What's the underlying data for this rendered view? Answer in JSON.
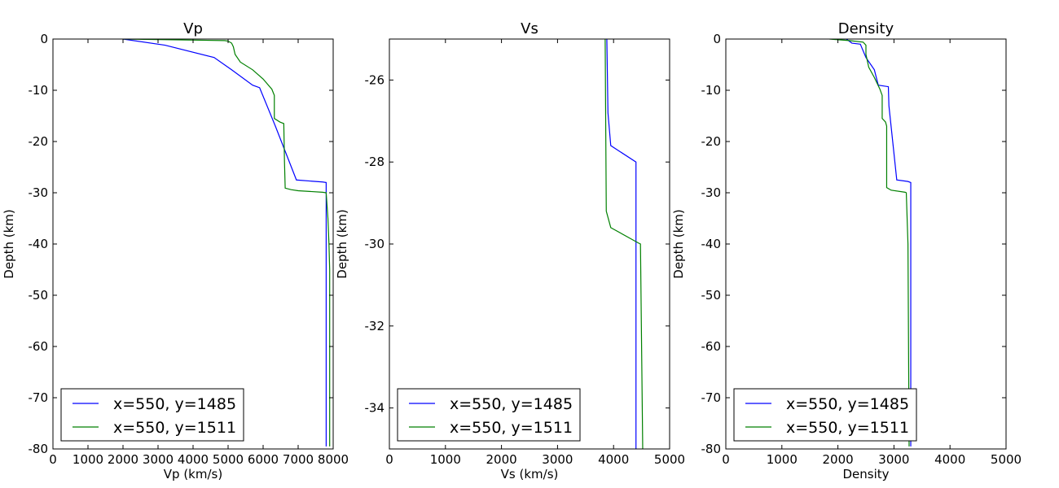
{
  "chart_data": [
    {
      "type": "line",
      "title": "Vp",
      "xlabel": "Vp (km/s)",
      "ylabel": "Depth (km)",
      "xlim": [
        0,
        8000
      ],
      "ylim": [
        -80,
        0
      ],
      "xticks": [
        0,
        1000,
        2000,
        3000,
        4000,
        5000,
        6000,
        7000,
        8000
      ],
      "yticks": [
        0,
        -10,
        -20,
        -30,
        -40,
        -50,
        -60,
        -70,
        -80
      ],
      "grid": false,
      "legend": "lower-left",
      "series": [
        {
          "name": "x=550, y=1485",
          "color": "#0000ff",
          "points": [
            [
              2000,
              0
            ],
            [
              3200,
              -1.2
            ],
            [
              4600,
              -3.6
            ],
            [
              5100,
              -6.0
            ],
            [
              5700,
              -9.0
            ],
            [
              5900,
              -9.5
            ],
            [
              6350,
              -17.0
            ],
            [
              6950,
              -27.5
            ],
            [
              7700,
              -27.9
            ],
            [
              7800,
              -28.0
            ],
            [
              7800,
              -79.5
            ]
          ]
        },
        {
          "name": "x=550, y=1511",
          "color": "#008000",
          "points": [
            [
              2000,
              0
            ],
            [
              4900,
              -0.3
            ],
            [
              5000,
              -0.4
            ],
            [
              5100,
              -0.8
            ],
            [
              5150,
              -1.5
            ],
            [
              5200,
              -3.0
            ],
            [
              5350,
              -4.5
            ],
            [
              5700,
              -6.0
            ],
            [
              6000,
              -7.8
            ],
            [
              6250,
              -9.8
            ],
            [
              6320,
              -11.0
            ],
            [
              6320,
              -15.5
            ],
            [
              6480,
              -16.2
            ],
            [
              6590,
              -16.5
            ],
            [
              6610,
              -24.0
            ],
            [
              6630,
              -29.1
            ],
            [
              6800,
              -29.4
            ],
            [
              7000,
              -29.6
            ],
            [
              7700,
              -29.9
            ],
            [
              7800,
              -30.0
            ],
            [
              7850,
              -35.0
            ],
            [
              7880,
              -40.0
            ],
            [
              7900,
              -45.0
            ],
            [
              7900,
              -79.5
            ]
          ]
        }
      ]
    },
    {
      "type": "line",
      "title": "Vs",
      "xlabel": "Vs (km/s)",
      "ylabel": "Depth (km)",
      "xlim": [
        0,
        5000
      ],
      "ylim": [
        -35,
        -25
      ],
      "xticks": [
        0,
        1000,
        2000,
        3000,
        4000,
        5000
      ],
      "yticks": [
        -26,
        -28,
        -30,
        -32,
        -34
      ],
      "grid": false,
      "legend": "lower-left",
      "series": [
        {
          "name": "x=550, y=1485",
          "color": "#0000ff",
          "points": [
            [
              3880,
              -25.0
            ],
            [
              3900,
              -26.8
            ],
            [
              3950,
              -27.6
            ],
            [
              4400,
              -28.0
            ],
            [
              4400,
              -35.0
            ]
          ]
        },
        {
          "name": "x=550, y=1511",
          "color": "#008000",
          "points": [
            [
              3850,
              -25.0
            ],
            [
              3870,
              -29.2
            ],
            [
              3950,
              -29.6
            ],
            [
              4450,
              -29.98
            ],
            [
              4480,
              -30.0
            ],
            [
              4520,
              -35.0
            ]
          ]
        }
      ]
    },
    {
      "type": "line",
      "title": "Density",
      "xlabel": "Density",
      "ylabel": "Depth (km)",
      "xlim": [
        0,
        5000
      ],
      "ylim": [
        -80,
        0
      ],
      "xticks": [
        0,
        1000,
        2000,
        3000,
        4000,
        5000
      ],
      "yticks": [
        0,
        -10,
        -20,
        -30,
        -40,
        -50,
        -60,
        -70,
        -80
      ],
      "grid": false,
      "legend": "lower-left",
      "series": [
        {
          "name": "x=550, y=1485",
          "color": "#0000ff",
          "points": [
            [
              1900,
              0
            ],
            [
              2150,
              0
            ],
            [
              2250,
              -0.8
            ],
            [
              2400,
              -1.0
            ],
            [
              2500,
              -3.6
            ],
            [
              2650,
              -6.0
            ],
            [
              2720,
              -9.0
            ],
            [
              2900,
              -9.3
            ],
            [
              2910,
              -13.0
            ],
            [
              3050,
              -27.5
            ],
            [
              3250,
              -27.8
            ],
            [
              3300,
              -28.0
            ],
            [
              3300,
              -79.5
            ]
          ]
        },
        {
          "name": "x=550, y=1511",
          "color": "#008000",
          "points": [
            [
              1850,
              0
            ],
            [
              2200,
              -0.3
            ],
            [
              2450,
              -0.6
            ],
            [
              2500,
              -1.2
            ],
            [
              2500,
              -3.0
            ],
            [
              2550,
              -5.5
            ],
            [
              2650,
              -7.5
            ],
            [
              2750,
              -9.8
            ],
            [
              2790,
              -11.0
            ],
            [
              2790,
              -15.5
            ],
            [
              2850,
              -16.2
            ],
            [
              2870,
              -17.0
            ],
            [
              2870,
              -29.0
            ],
            [
              2950,
              -29.5
            ],
            [
              3200,
              -29.9
            ],
            [
              3220,
              -30.0
            ],
            [
              3250,
              -40.0
            ],
            [
              3270,
              -79.5
            ]
          ]
        }
      ]
    }
  ]
}
